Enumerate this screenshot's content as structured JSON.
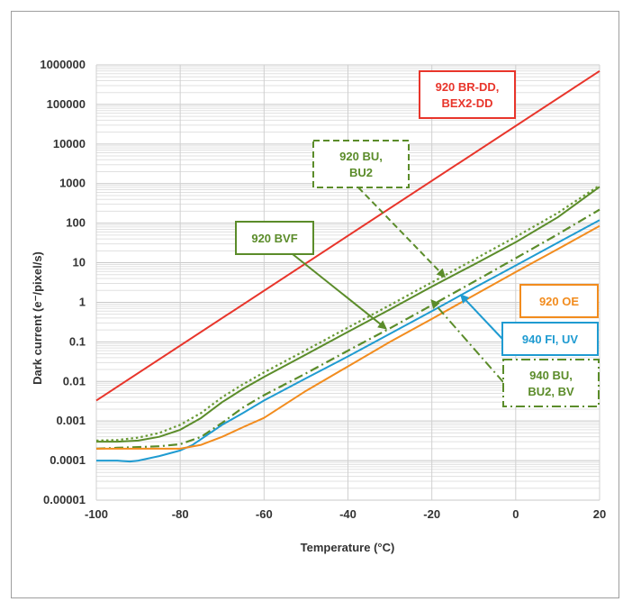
{
  "chart_data": {
    "type": "line",
    "xlabel": "Temperature (°C)",
    "ylabel": "Dark current (e⁻/pixel/s)",
    "xlim": [
      -100,
      20
    ],
    "ylim": [
      1e-05,
      1000000
    ],
    "y_scale": "log",
    "grid": true,
    "x_ticks": [
      "-100",
      "-80",
      "-60",
      "-40",
      "-20",
      "0",
      "20"
    ],
    "y_ticks": [
      "0.00001",
      "0.0001",
      "0.001",
      "0.01",
      "0.1",
      "1",
      "10",
      "100",
      "1000",
      "10000",
      "100000",
      "1000000"
    ],
    "series": [
      {
        "name": "920 BR-DD, BEX2-DD",
        "color": "#e8352b",
        "dash": "solid",
        "x": [
          -100,
          20
        ],
        "y": [
          0.0033,
          700000
        ]
      },
      {
        "name": "920 BVF",
        "color": "#5b8c2a",
        "dash": "solid",
        "x": [
          -100,
          -95,
          -90,
          -85,
          -80,
          -75,
          -70,
          -65,
          -60,
          -50,
          -40,
          -30,
          -20,
          -10,
          0,
          10,
          20
        ],
        "y": [
          0.0003,
          0.0003,
          0.00032,
          0.0004,
          0.0006,
          0.0012,
          0.003,
          0.0065,
          0.013,
          0.048,
          0.18,
          0.66,
          2.5,
          9,
          33,
          140,
          830
        ]
      },
      {
        "name": "920 BU, BU2",
        "color": "#6a9a35",
        "dash": "dotted",
        "x": [
          -100,
          -95,
          -90,
          -85,
          -80,
          -75,
          -70,
          -65,
          -60,
          -50,
          -40,
          -30,
          -20,
          -10,
          0,
          10,
          20
        ],
        "y": [
          0.00032,
          0.00033,
          0.00038,
          0.0005,
          0.0008,
          0.0016,
          0.004,
          0.0085,
          0.017,
          0.062,
          0.23,
          0.85,
          3.2,
          12,
          45,
          180,
          900
        ]
      },
      {
        "name": "940 BU, BU2, BV",
        "color": "#5b8c2a",
        "dash": "dashdot",
        "x": [
          -100,
          -95,
          -90,
          -85,
          -80,
          -75,
          -70,
          -65,
          -60,
          -50,
          -40,
          -30,
          -20,
          -10,
          0,
          10,
          20
        ],
        "y": [
          0.0002,
          0.00021,
          0.00022,
          0.00023,
          0.00026,
          0.0004,
          0.0009,
          0.0022,
          0.0045,
          0.016,
          0.06,
          0.22,
          0.85,
          3.3,
          13,
          52,
          220
        ]
      },
      {
        "name": "940 FI, UV",
        "color": "#1f9bd1",
        "dash": "solid",
        "x": [
          -100,
          -95,
          -92,
          -90,
          -85,
          -80,
          -77,
          -75,
          -70,
          -65,
          -60,
          -50,
          -40,
          -30,
          -20,
          -10,
          0,
          10,
          20
        ],
        "y": [
          0.0001,
          0.0001,
          9.5e-05,
          0.0001,
          0.00013,
          0.00018,
          0.00025,
          0.00035,
          0.0008,
          0.0016,
          0.0033,
          0.012,
          0.043,
          0.16,
          0.6,
          2.3,
          8.5,
          32,
          120
        ]
      },
      {
        "name": "920 OE",
        "color": "#f28c1e",
        "dash": "solid",
        "x": [
          -100,
          -95,
          -90,
          -85,
          -80,
          -75,
          -70,
          -65,
          -60,
          -50,
          -40,
          -30,
          -20,
          -10,
          0,
          10,
          20
        ],
        "y": [
          0.0002,
          0.0002,
          0.0002,
          0.0002,
          0.0002,
          0.00025,
          0.0004,
          0.0007,
          0.0012,
          0.0058,
          0.024,
          0.1,
          0.38,
          1.5,
          5.8,
          22,
          85
        ]
      }
    ],
    "annotations": [
      {
        "text": [
          "920 BR-DD,",
          "BEX2-DD"
        ],
        "color": "#e8352b",
        "border": "solid"
      },
      {
        "text": [
          "920 BU,",
          "BU2"
        ],
        "color": "#5b8c2a",
        "border": "dashed",
        "arrow_dash": "dashed",
        "arrow_to": [
          -17,
          4.5
        ]
      },
      {
        "text": [
          "920 BVF"
        ],
        "color": "#5b8c2a",
        "border": "solid",
        "arrow_dash": "solid",
        "arrow_to": [
          -31,
          0.22
        ]
      },
      {
        "text": [
          "920 OE"
        ],
        "color": "#f28c1e",
        "border": "solid"
      },
      {
        "text": [
          "940 FI, UV"
        ],
        "color": "#1f9bd1",
        "border": "solid",
        "arrow_dash": "solid",
        "arrow_to": [
          -13,
          1.5
        ]
      },
      {
        "text": [
          "940 BU,",
          "BU2, BV"
        ],
        "color": "#5b8c2a",
        "border": "dashdot",
        "arrow_dash": "dashdot",
        "arrow_to": [
          -20,
          1.1
        ]
      }
    ]
  }
}
